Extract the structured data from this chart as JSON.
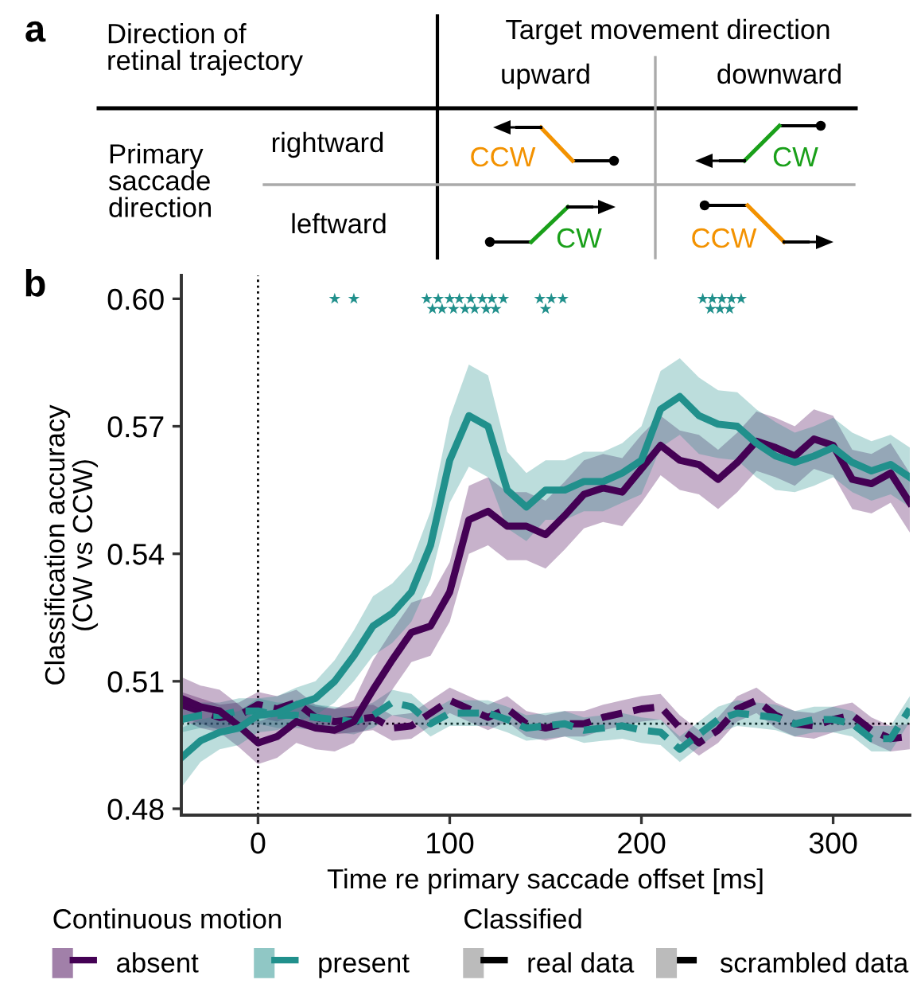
{
  "chart_data": [
    {
      "type": "other",
      "title": "a",
      "annotations": [
        "Direction of\nretinal trajectory",
        "Target movement direction",
        "upward",
        "downward",
        "Primary\nsaccade\ndirection",
        "rightward",
        "leftward",
        "CCW",
        "CW",
        "CW",
        "CCW"
      ]
    },
    {
      "type": "line",
      "title": "b",
      "xlabel": "Time re primary saccade offset [ms]",
      "ylabel": "Classification accuracy\n(CW vs CCW)",
      "x": [
        -40,
        -30,
        -20,
        -10,
        0,
        10,
        20,
        30,
        40,
        50,
        60,
        70,
        80,
        90,
        100,
        110,
        120,
        130,
        140,
        150,
        160,
        170,
        180,
        190,
        200,
        210,
        220,
        230,
        240,
        250,
        260,
        270,
        280,
        290,
        300,
        310,
        320,
        330,
        340
      ],
      "xlim": [
        -40,
        340
      ],
      "xticks": [
        0,
        100,
        200,
        300
      ],
      "ylim": [
        0.4785,
        0.6055
      ],
      "yticks": [
        {
          "value": 0.48,
          "label": "0.48"
        },
        {
          "value": 0.51,
          "label": "0.51"
        },
        {
          "value": 0.54,
          "label": "0.54"
        },
        {
          "value": 0.57,
          "label": "0.57"
        },
        {
          "value": 0.6,
          "label": "0.60"
        }
      ],
      "legend": "bottom",
      "legend_title": "Continuous motion",
      "annotations": [
        "Classified",
        "real data",
        "scrambled data"
      ],
      "ref_lines": [
        {
          "axis": "x",
          "value": 0,
          "line_style": "dotted",
          "color": "#000000"
        },
        {
          "axis": "y",
          "value": 0.5,
          "line_style": "dotted",
          "color": "#000000"
        }
      ],
      "series": [
        {
          "color": "#440154",
          "line_style": "dashed",
          "values": [
            0.5045,
            0.503,
            0.5015,
            0.502,
            0.5045,
            0.5035,
            0.505,
            0.5015,
            0.5005,
            0.501,
            0.5015,
            0.499,
            0.4995,
            0.5025,
            0.5055,
            0.5035,
            0.5015,
            0.5035,
            0.5,
            0.499,
            0.5,
            0.5,
            0.5015,
            0.5025,
            0.5035,
            0.504,
            0.499,
            0.4955,
            0.4985,
            0.5035,
            0.5055,
            0.502,
            0.5,
            0.4995,
            0.501,
            0.502,
            0.4985,
            0.4965,
            0.497
          ],
          "lower": [
            0.5015,
            0.5,
            0.4985,
            0.499,
            0.5015,
            0.5005,
            0.502,
            0.4985,
            0.4975,
            0.498,
            0.4985,
            0.496,
            0.4965,
            0.4995,
            0.5025,
            0.5005,
            0.4985,
            0.5005,
            0.497,
            0.496,
            0.497,
            0.497,
            0.4985,
            0.4995,
            0.5005,
            0.501,
            0.496,
            0.4925,
            0.4955,
            0.5005,
            0.5025,
            0.499,
            0.497,
            0.4965,
            0.498,
            0.499,
            0.4955,
            0.4935,
            0.494
          ],
          "upper": [
            0.5075,
            0.506,
            0.5045,
            0.505,
            0.5075,
            0.5065,
            0.508,
            0.5045,
            0.5035,
            0.504,
            0.5045,
            0.502,
            0.5025,
            0.5055,
            0.5085,
            0.5065,
            0.5045,
            0.5065,
            0.503,
            0.502,
            0.503,
            0.503,
            0.5045,
            0.5055,
            0.5065,
            0.507,
            0.502,
            0.4985,
            0.5015,
            0.5065,
            0.5085,
            0.505,
            0.503,
            0.5025,
            0.504,
            0.505,
            0.5015,
            0.4995,
            0.5
          ]
        },
        {
          "color": "#21908c",
          "line_style": "dashed",
          "values": [
            0.501,
            0.502,
            0.502,
            0.503,
            0.503,
            0.502,
            0.502,
            0.5015,
            0.501,
            0.5005,
            0.502,
            0.505,
            0.504,
            0.5,
            0.5025,
            0.5025,
            0.5025,
            0.501,
            0.499,
            0.4995,
            0.5,
            0.4985,
            0.499,
            0.4995,
            0.4985,
            0.498,
            0.494,
            0.4975,
            0.501,
            0.5025,
            0.502,
            0.5015,
            0.5,
            0.501,
            0.501,
            0.5,
            0.4965,
            0.4965,
            0.5035
          ],
          "lower": [
            0.498,
            0.499,
            0.499,
            0.5,
            0.5,
            0.499,
            0.499,
            0.4985,
            0.498,
            0.4975,
            0.499,
            0.502,
            0.501,
            0.497,
            0.4995,
            0.4995,
            0.4995,
            0.498,
            0.496,
            0.4965,
            0.497,
            0.4955,
            0.496,
            0.4965,
            0.4955,
            0.495,
            0.491,
            0.4945,
            0.498,
            0.4995,
            0.499,
            0.4985,
            0.497,
            0.498,
            0.498,
            0.497,
            0.4935,
            0.4935,
            0.5005
          ],
          "upper": [
            0.504,
            0.505,
            0.505,
            0.506,
            0.506,
            0.505,
            0.505,
            0.5045,
            0.504,
            0.5035,
            0.505,
            0.508,
            0.507,
            0.503,
            0.5055,
            0.5055,
            0.5055,
            0.504,
            0.502,
            0.5025,
            0.503,
            0.5015,
            0.502,
            0.5025,
            0.5015,
            0.501,
            0.497,
            0.5005,
            0.504,
            0.5055,
            0.505,
            0.5045,
            0.503,
            0.504,
            0.504,
            0.503,
            0.4995,
            0.4995,
            0.5065
          ]
        },
        {
          "name": "absent",
          "color": "#440154",
          "line_style": "solid",
          "values": [
            0.506,
            0.504,
            0.503,
            0.4995,
            0.4955,
            0.497,
            0.5005,
            0.499,
            0.4985,
            0.5005,
            0.508,
            0.515,
            0.5215,
            0.523,
            0.531,
            0.548,
            0.55,
            0.5465,
            0.5465,
            0.5445,
            0.549,
            0.554,
            0.5555,
            0.5545,
            0.56,
            0.5655,
            0.562,
            0.561,
            0.5575,
            0.5615,
            0.5665,
            0.565,
            0.563,
            0.567,
            0.5655,
            0.5575,
            0.5565,
            0.559,
            0.552
          ],
          "lower": [
            0.501,
            0.499,
            0.498,
            0.4945,
            0.4905,
            0.492,
            0.4955,
            0.494,
            0.4935,
            0.4955,
            0.501,
            0.508,
            0.5145,
            0.516,
            0.524,
            0.54,
            0.542,
            0.5385,
            0.5385,
            0.5365,
            0.541,
            0.546,
            0.5475,
            0.5465,
            0.552,
            0.5585,
            0.555,
            0.554,
            0.5505,
            0.5545,
            0.5595,
            0.558,
            0.556,
            0.56,
            0.5585,
            0.5505,
            0.5495,
            0.552,
            0.545
          ],
          "upper": [
            0.511,
            0.509,
            0.508,
            0.5045,
            0.5005,
            0.502,
            0.5055,
            0.504,
            0.5035,
            0.5055,
            0.515,
            0.522,
            0.5285,
            0.53,
            0.538,
            0.556,
            0.558,
            0.5545,
            0.5545,
            0.5525,
            0.557,
            0.562,
            0.5635,
            0.5625,
            0.568,
            0.5725,
            0.569,
            0.568,
            0.5645,
            0.5685,
            0.5735,
            0.572,
            0.57,
            0.574,
            0.5725,
            0.5645,
            0.5635,
            0.566,
            0.559
          ]
        },
        {
          "name": "present",
          "color": "#21908c",
          "line_style": "solid",
          "values": [
            0.492,
            0.496,
            0.498,
            0.499,
            0.502,
            0.5025,
            0.5045,
            0.506,
            0.51,
            0.516,
            0.523,
            0.526,
            0.531,
            0.542,
            0.562,
            0.5725,
            0.57,
            0.555,
            0.551,
            0.555,
            0.555,
            0.557,
            0.557,
            0.559,
            0.562,
            0.574,
            0.577,
            0.5725,
            0.5705,
            0.57,
            0.566,
            0.563,
            0.5615,
            0.563,
            0.565,
            0.5615,
            0.5595,
            0.561,
            0.558
          ],
          "lower": [
            0.485,
            0.491,
            0.494,
            0.495,
            0.498,
            0.4985,
            0.5005,
            0.502,
            0.505,
            0.51,
            0.516,
            0.519,
            0.524,
            0.534,
            0.552,
            0.5605,
            0.558,
            0.546,
            0.543,
            0.548,
            0.548,
            0.55,
            0.55,
            0.552,
            0.554,
            0.565,
            0.568,
            0.5635,
            0.5625,
            0.562,
            0.558,
            0.555,
            0.5545,
            0.556,
            0.558,
            0.5545,
            0.5525,
            0.554,
            0.551
          ],
          "upper": [
            0.499,
            0.501,
            0.502,
            0.503,
            0.506,
            0.5065,
            0.5085,
            0.51,
            0.515,
            0.522,
            0.53,
            0.533,
            0.538,
            0.55,
            0.572,
            0.5845,
            0.582,
            0.564,
            0.559,
            0.562,
            0.562,
            0.564,
            0.564,
            0.566,
            0.57,
            0.583,
            0.586,
            0.5815,
            0.5785,
            0.578,
            0.574,
            0.571,
            0.5685,
            0.57,
            0.572,
            0.5685,
            0.5665,
            0.568,
            0.565
          ]
        },
        {
          "type": "scatter",
          "marker": "star",
          "color": "#21908c",
          "x": [
            40,
            50,
            88,
            94,
            100,
            105,
            111,
            117,
            122,
            128,
            91,
            96,
            102,
            108,
            113,
            119,
            124,
            147,
            153,
            159,
            150,
            232,
            237,
            242,
            247,
            252,
            236,
            241,
            246
          ],
          "values": [
            0.6,
            0.6,
            0.6,
            0.6,
            0.6,
            0.6,
            0.6,
            0.6,
            0.6,
            0.6,
            0.5976,
            0.5976,
            0.5976,
            0.5976,
            0.5976,
            0.5976,
            0.5976,
            0.6,
            0.6,
            0.6,
            0.5976,
            0.6,
            0.6,
            0.6,
            0.6,
            0.6,
            0.5976,
            0.5976,
            0.5976
          ]
        }
      ]
    }
  ]
}
